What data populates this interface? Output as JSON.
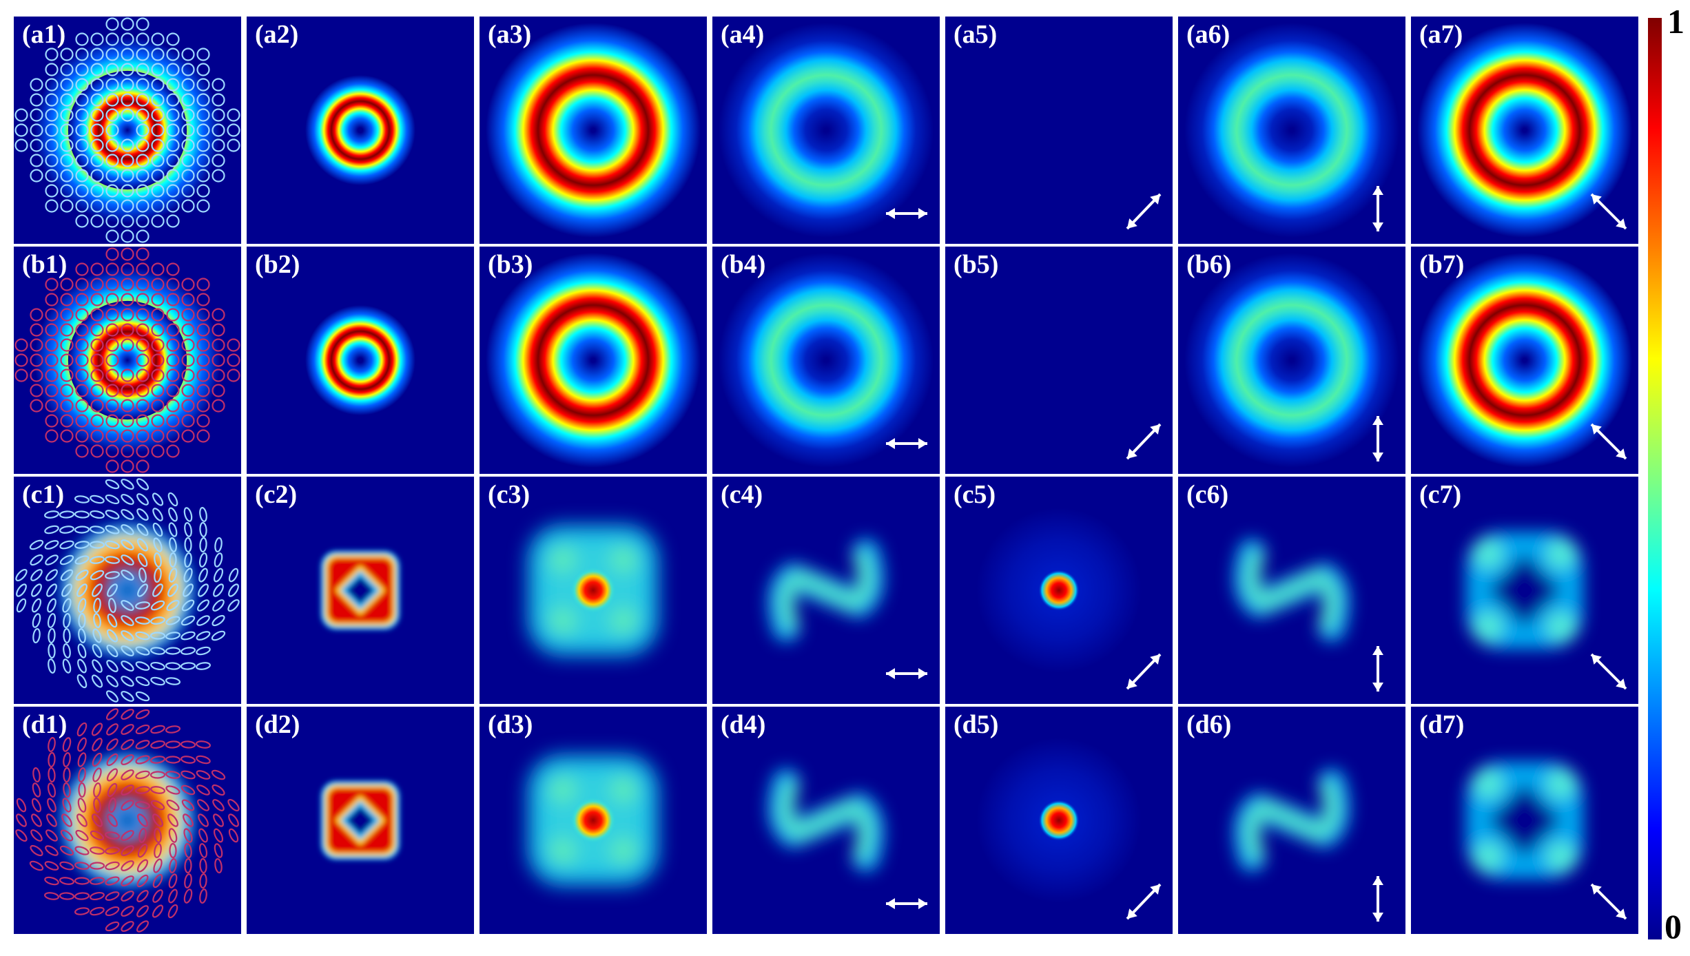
{
  "figure": {
    "rows": [
      {
        "id": "a",
        "panels": [
          {
            "label": "(a1)",
            "kind": "overlay-ring",
            "marker": "circle",
            "marker_color": "#9fd8ff",
            "arrow": ""
          },
          {
            "label": "(a2)",
            "kind": "small-ring",
            "arrow": ""
          },
          {
            "label": "(a3)",
            "kind": "big-ring",
            "level": 1.0,
            "arrow": ""
          },
          {
            "label": "(a4)",
            "kind": "big-ring",
            "level": 0.5,
            "arrow": "horizontal"
          },
          {
            "label": "(a5)",
            "kind": "blank",
            "arrow": "diagonal-up"
          },
          {
            "label": "(a6)",
            "kind": "big-ring",
            "level": 0.5,
            "arrow": "vertical"
          },
          {
            "label": "(a7)",
            "kind": "big-ring",
            "level": 1.0,
            "arrow": "diagonal-down"
          }
        ]
      },
      {
        "id": "b",
        "panels": [
          {
            "label": "(b1)",
            "kind": "overlay-ring",
            "marker": "circle",
            "marker_color": "#c0306a",
            "arrow": ""
          },
          {
            "label": "(b2)",
            "kind": "small-ring",
            "arrow": ""
          },
          {
            "label": "(b3)",
            "kind": "big-ring",
            "level": 1.0,
            "arrow": ""
          },
          {
            "label": "(b4)",
            "kind": "big-ring",
            "level": 0.5,
            "arrow": "horizontal"
          },
          {
            "label": "(b5)",
            "kind": "blank",
            "arrow": "diagonal-up"
          },
          {
            "label": "(b6)",
            "kind": "big-ring",
            "level": 0.5,
            "arrow": "vertical"
          },
          {
            "label": "(b7)",
            "kind": "big-ring",
            "level": 1.0,
            "arrow": "diagonal-down"
          }
        ]
      },
      {
        "id": "c",
        "panels": [
          {
            "label": "(c1)",
            "kind": "overlay-spiral",
            "marker": "ellipse",
            "marker_color": "#9fd8ff",
            "handedness": "left",
            "arrow": ""
          },
          {
            "label": "(c2)",
            "kind": "square-ring",
            "arrow": ""
          },
          {
            "label": "(c3)",
            "kind": "square-spot",
            "arrow": ""
          },
          {
            "label": "(c4)",
            "kind": "s-shape",
            "handedness": "N",
            "arrow": "horizontal"
          },
          {
            "label": "(c5)",
            "kind": "center-spot",
            "arrow": "diagonal-up"
          },
          {
            "label": "(c6)",
            "kind": "s-shape",
            "handedness": "S",
            "arrow": "vertical"
          },
          {
            "label": "(c7)",
            "kind": "four-lobes",
            "arrow": "diagonal-down"
          }
        ]
      },
      {
        "id": "d",
        "panels": [
          {
            "label": "(d1)",
            "kind": "overlay-spiral",
            "marker": "ellipse",
            "marker_color": "#c0306a",
            "handedness": "right",
            "arrow": ""
          },
          {
            "label": "(d2)",
            "kind": "square-ring",
            "arrow": ""
          },
          {
            "label": "(d3)",
            "kind": "square-spot",
            "arrow": ""
          },
          {
            "label": "(d4)",
            "kind": "s-shape",
            "handedness": "S",
            "arrow": "horizontal"
          },
          {
            "label": "(d5)",
            "kind": "center-spot",
            "arrow": "diagonal-up"
          },
          {
            "label": "(d6)",
            "kind": "s-shape",
            "handedness": "N",
            "arrow": "vertical"
          },
          {
            "label": "(d7)",
            "kind": "four-lobes",
            "arrow": "diagonal-down"
          }
        ]
      }
    ],
    "colorbar": {
      "max_label": "1",
      "min_label": "0",
      "colormap": "jet",
      "range": [
        0,
        1
      ]
    },
    "colors": {
      "background": "#00008f",
      "arrow": "#ffffff",
      "label": "#ffffff"
    }
  }
}
